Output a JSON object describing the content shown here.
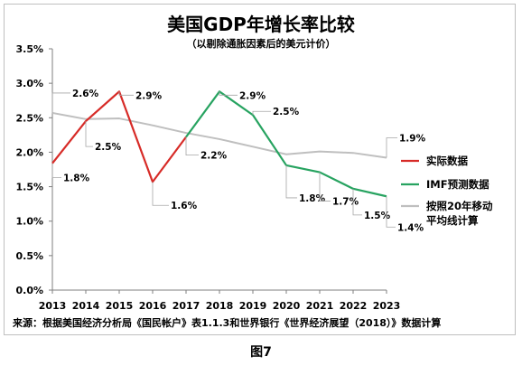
{
  "chart_data": {
    "type": "line",
    "title": "美国GDP年增长率比较",
    "subtitle": "（以剔除通胀因素后的美元计价）",
    "x": [
      "2013",
      "2014",
      "2015",
      "2016",
      "2017",
      "2018",
      "2019",
      "2020",
      "2021",
      "2022",
      "2023"
    ],
    "y_ticks": [
      "0.0%",
      "0.5%",
      "1.0%",
      "1.5%",
      "2.0%",
      "2.5%",
      "3.0%",
      "3.5%"
    ],
    "ylim": [
      0,
      3.5
    ],
    "grid": false,
    "legend_position": "right",
    "series": [
      {
        "name": "实际数据",
        "color": "#d72b27",
        "values": [
          1.84,
          2.45,
          2.88,
          1.57,
          2.22,
          null,
          null,
          null,
          null,
          null,
          null
        ]
      },
      {
        "name": "IMF预测数据",
        "color": "#27a360",
        "values": [
          null,
          null,
          null,
          null,
          2.22,
          2.88,
          2.54,
          1.81,
          1.71,
          1.47,
          1.36
        ]
      },
      {
        "name": "按照20年移动平均线计算",
        "color": "#bfbfbf",
        "values": [
          2.57,
          2.48,
          2.49,
          2.39,
          2.28,
          2.19,
          2.08,
          1.97,
          2.01,
          1.99,
          1.92
        ]
      }
    ],
    "annotations": [
      {
        "text": "1.8%",
        "year": "2013"
      },
      {
        "text": "2.6%",
        "year": "2013"
      },
      {
        "text": "2.5%",
        "year": "2014"
      },
      {
        "text": "2.9%",
        "year": "2015"
      },
      {
        "text": "1.6%",
        "year": "2016"
      },
      {
        "text": "2.2%",
        "year": "2017"
      },
      {
        "text": "2.9%",
        "year": "2018"
      },
      {
        "text": "2.5%",
        "year": "2019"
      },
      {
        "text": "1.8%",
        "year": "2020"
      },
      {
        "text": "1.7%",
        "year": "2021"
      },
      {
        "text": "1.5%",
        "year": "2022"
      },
      {
        "text": "1.4%",
        "year": "2023"
      },
      {
        "text": "1.9%",
        "year": "2023"
      }
    ],
    "source": "来源：根据美国经济分析局《国民帐户》表1.1.3和世界银行《世界经济展望（2018）》数据计算"
  },
  "figure_caption": "图7"
}
